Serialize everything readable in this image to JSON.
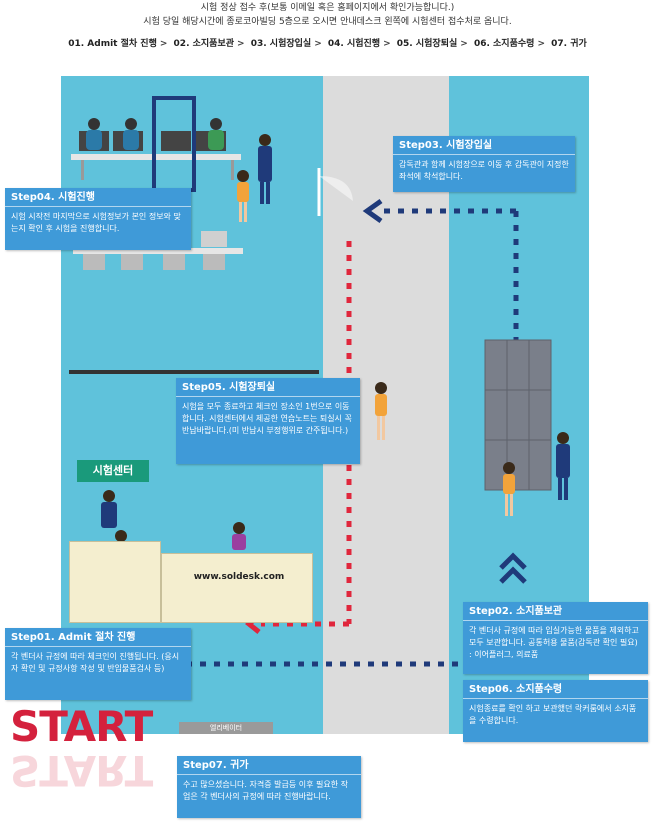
{
  "intro": {
    "line1": "시험 정상 접수 후(보통 이메일 혹은 홈페이지에서 확인가능합니다.)",
    "line2": "시험 당일 해당시간에 종로코아빌딩 5층으로 오시면 안내데스크 왼쪽에 시험센터 접수처로 옵니다."
  },
  "nav_steps": [
    "01. Admit 절차 진행",
    "02. 소지품보관",
    "03. 시험장입실",
    "04. 시험진행",
    "05. 시험장퇴실",
    "06. 소지품수령",
    "07. 귀가"
  ],
  "nav_separator": ">",
  "steps": {
    "s01": {
      "title": "Step01. Admit 절차 진행",
      "desc": "각 벤더사 규정에 따라 체크인이 진행됩니다. (응시자 확인 및 규정사항 작성 및 반입물품검사 등)"
    },
    "s02": {
      "title": "Step02. 소지품보관",
      "desc": "각 벤더사 규정에 따라 입실가능한 물품을 제외하고 모두 보관합니다. 공통허용 물품(감독관 확인 필요) : 이어플러그, 의료품"
    },
    "s03": {
      "title": "Step03. 시험장입실",
      "desc": "감독관과 함께 시험장으로 이동 후 감독관이 지정한 좌석에 착석합니다."
    },
    "s04": {
      "title": "Step04. 시험진행",
      "desc": "시험 시작전 마지막으로 시험정보가 본인 정보와 맞는지 확인 후 시험을 진행합니다."
    },
    "s05": {
      "title": "Step05. 시험장퇴실",
      "desc": "시험을 모두 종료하고 체크인 장소인 1번으로 이동합니다. 시험센터에서 제공한 연습노트는 퇴실시 꼭 반납바랍니다.(미 반납시 부정행위로 간주됩니다.)"
    },
    "s06": {
      "title": "Step06. 소지품수령",
      "desc": "시험종료를 확인 하고 보관했던 락커룸에서 소지품을 수령합니다."
    },
    "s07": {
      "title": "Step07. 귀가",
      "desc": "수고 많으셨습니다. 자격증 발급등 이후 필요한 작업은 각 벤더사의 규정에 따라 진행바랍니다."
    }
  },
  "map": {
    "center_label": "시험센터",
    "desk_url": "www.soldesk.com",
    "elevator_label": "엘리베이터",
    "start_label": "START"
  },
  "colors": {
    "floor": "#5fc2db",
    "corridor": "#dcdcdc",
    "step_box": "#3f9ad8",
    "red_path": "#e0263c",
    "navy_path": "#1f3a7a",
    "center_label_bg": "#1a9a7b",
    "start_text": "#d4213d"
  }
}
